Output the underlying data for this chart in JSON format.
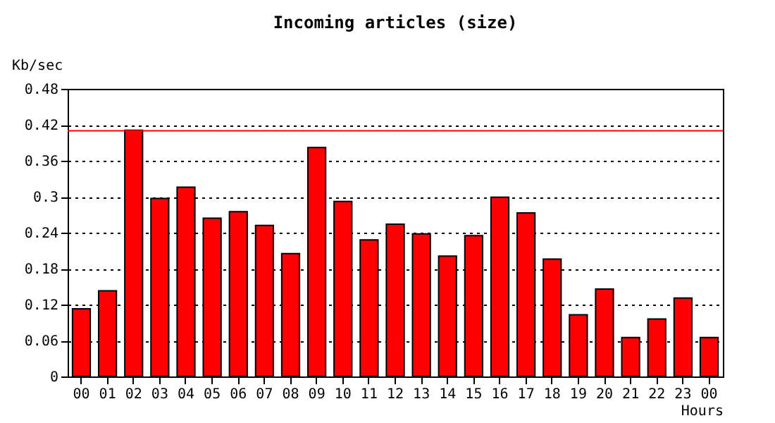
{
  "chart_data": {
    "type": "bar",
    "title": "Incoming articles (size)",
    "xlabel": "Hours",
    "ylabel": "Kb/sec",
    "categories": [
      "00",
      "01",
      "02",
      "03",
      "04",
      "05",
      "06",
      "07",
      "08",
      "09",
      "10",
      "11",
      "12",
      "13",
      "14",
      "15",
      "16",
      "17",
      "18",
      "19",
      "20",
      "21",
      "22",
      "23",
      "00"
    ],
    "values": [
      0.113,
      0.143,
      0.411,
      0.297,
      0.316,
      0.264,
      0.275,
      0.252,
      0.205,
      0.382,
      0.292,
      0.228,
      0.254,
      0.238,
      0.201,
      0.235,
      0.299,
      0.273,
      0.196,
      0.103,
      0.146,
      0.065,
      0.096,
      0.131,
      0.065
    ],
    "color": "#ff0000",
    "ylim": [
      0,
      0.48
    ],
    "yticks": [
      0,
      0.06,
      0.12,
      0.18,
      0.24,
      0.3,
      0.36,
      0.42,
      0.48
    ],
    "ref_lines": [
      {
        "axis": "y",
        "value": 0.41,
        "color": "#ff0000"
      }
    ],
    "grid": "y"
  }
}
